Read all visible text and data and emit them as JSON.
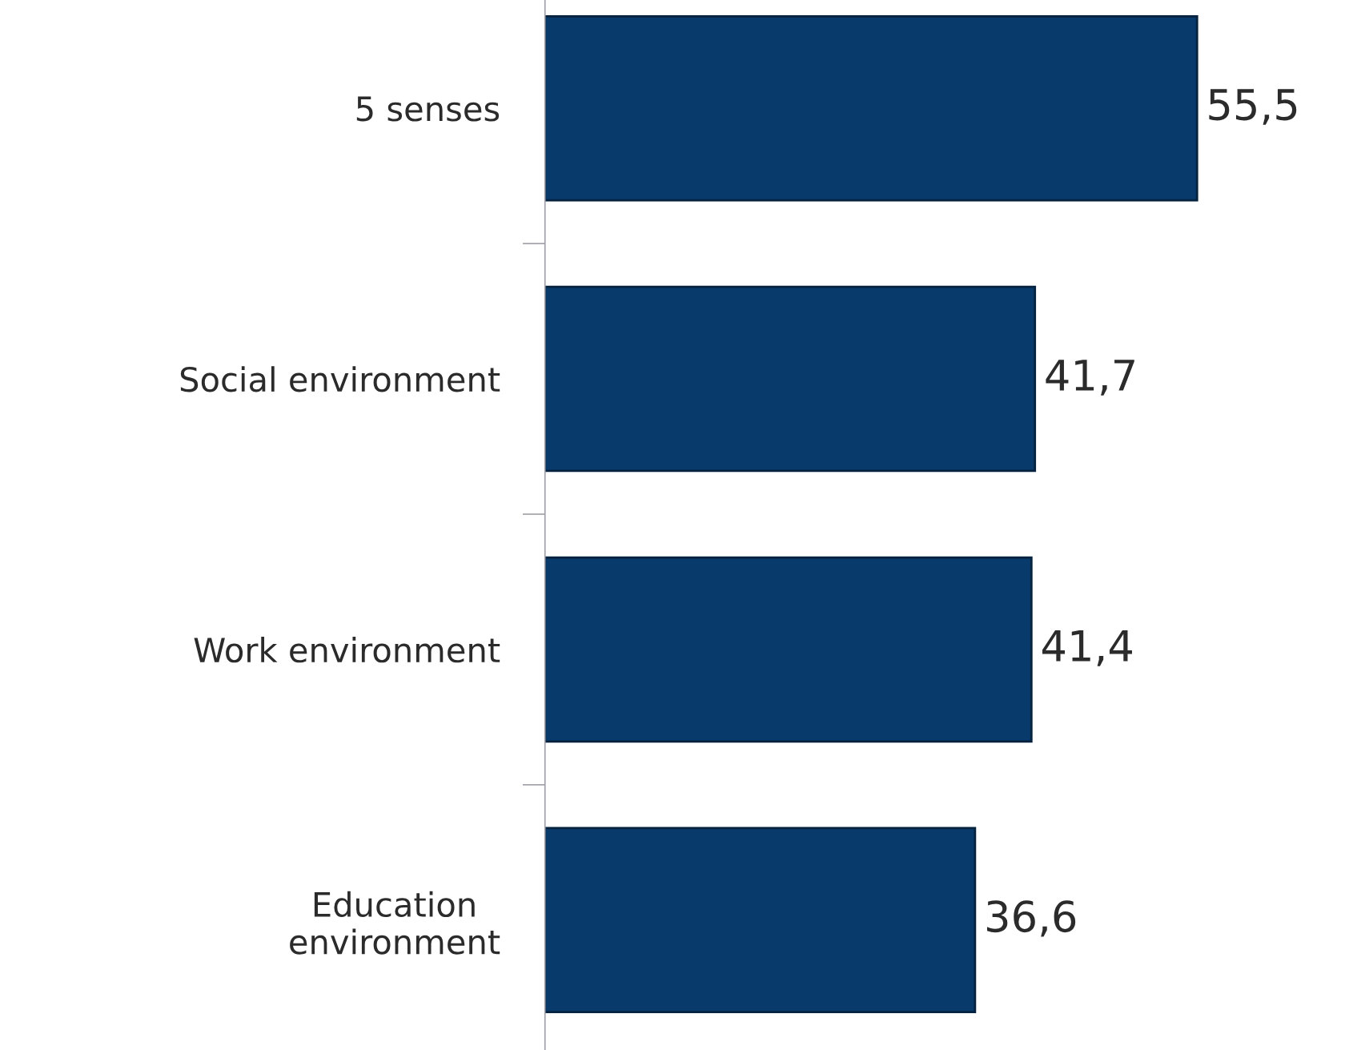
{
  "chart_data": {
    "type": "bar",
    "orientation": "horizontal",
    "categories": [
      "5 senses",
      "Social environment",
      "Work environment",
      "Education\nenvironment"
    ],
    "values": [
      55.5,
      41.7,
      41.4,
      36.6
    ],
    "value_labels": [
      "55,5",
      "41,7",
      "41,4",
      "36,6"
    ],
    "color": "#083a6b",
    "grid": false,
    "legend": false
  }
}
